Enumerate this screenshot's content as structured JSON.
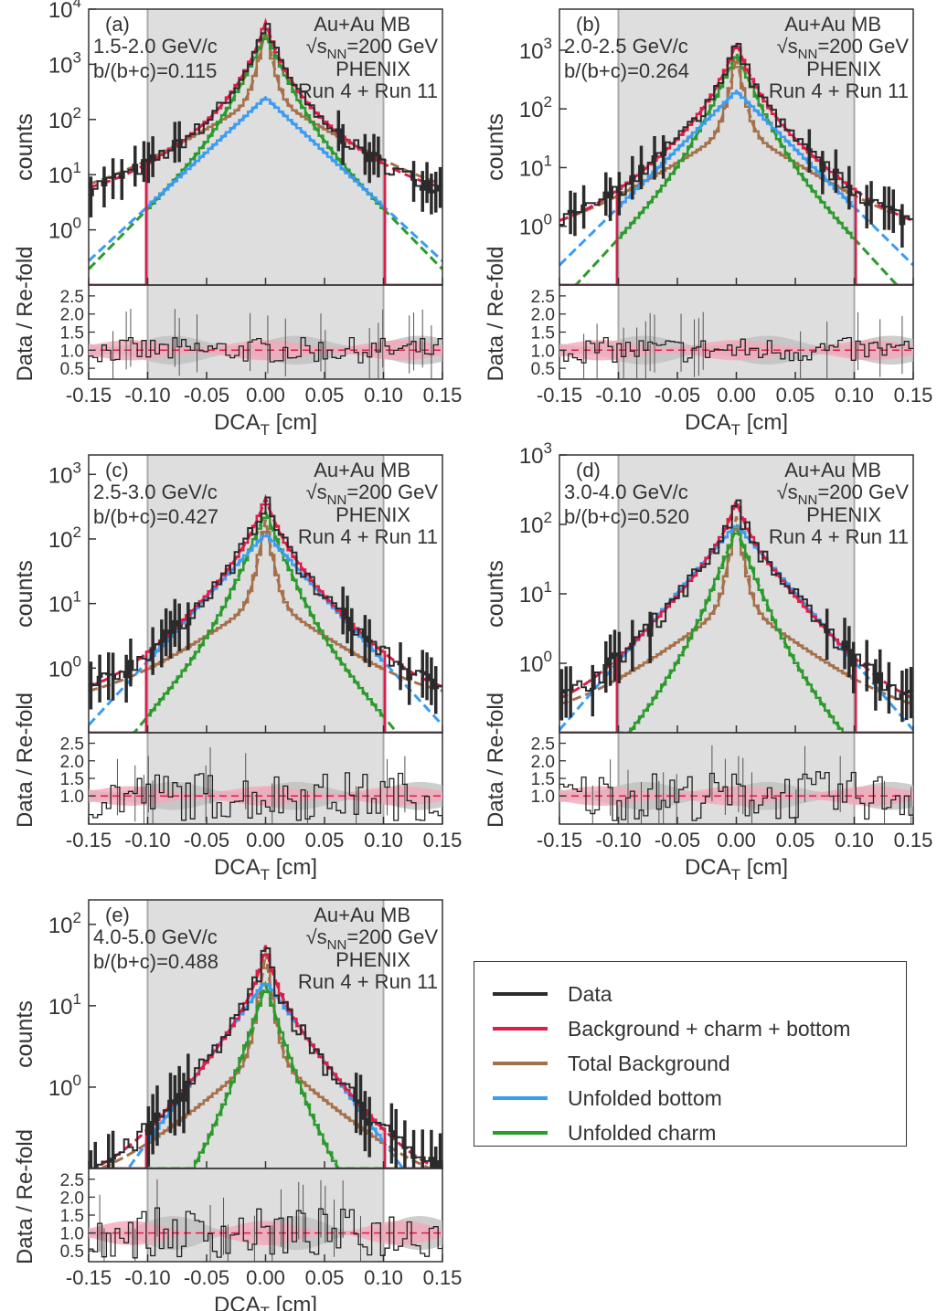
{
  "colors": {
    "data": "#2b2b2b",
    "total": "#dc1e48",
    "background": "#a5714b",
    "bottom": "#3a9cf2",
    "charm": "#2c9a2c",
    "band_gray": "#bdbdbd",
    "band_pink": "#f4a7b9",
    "shade": "#dedede"
  },
  "axis_labels": {
    "ylabel_top": "counts",
    "ylabel_ratio": "Data / Re-fold",
    "xlabel": "DCA_T [cm]",
    "xlabel_main": "DCA",
    "xlabel_sub": "T",
    "xlabel_unit": " [cm]"
  },
  "annotation": {
    "system": "Au+Au MB",
    "energy": "√sNN = 200 GeV",
    "energy_main": "√s",
    "energy_sub": "NN",
    "energy_rest": "=200 GeV",
    "experiment": "PHENIX",
    "runs": "Run 4 + Run 11"
  },
  "legend": [
    {
      "label": "Data",
      "color": "#2b2b2b"
    },
    {
      "label": "Background + charm + bottom",
      "color": "#dc1e48"
    },
    {
      "label": "Total Background",
      "color": "#a5714b"
    },
    {
      "label": "Unfolded bottom",
      "color": "#3a9cf2"
    },
    {
      "label": "Unfolded charm",
      "color": "#2c9a2c"
    }
  ],
  "chart_data": [
    {
      "type": "line",
      "panel": "(a)",
      "pt": "1.5-2.0 GeV/c",
      "bfrac": "b/(b+c)=0.115",
      "xlim": [
        -0.15,
        0.15
      ],
      "ylim_log": [
        0.1,
        10000
      ],
      "ratio_ylim": [
        0.2,
        2.8
      ],
      "yticks": [
        "10^0",
        "10^1",
        "10^2",
        "10^3",
        "10^4"
      ],
      "xticks": [
        "-0.15",
        "-0.10",
        "-0.05",
        "0.00",
        "0.05",
        "0.10",
        "0.15"
      ],
      "ratio_yticks": [
        "0.5",
        "1.0",
        "1.5",
        "2.0",
        "2.5"
      ],
      "shaded_region": [
        -0.1,
        0.1
      ],
      "series_params": {
        "peak": 8000,
        "background": 4500,
        "bottom": 250,
        "charm": 3500,
        "bkg_floor": 3
      }
    },
    {
      "type": "line",
      "panel": "(b)",
      "pt": "2.0-2.5 GeV/c",
      "bfrac": "b/(b+c)=0.264",
      "xlim": [
        -0.15,
        0.15
      ],
      "ylim_log": [
        0.1,
        5000
      ],
      "ratio_ylim": [
        0.2,
        2.8
      ],
      "yticks": [
        "10^0",
        "10^1",
        "10^2",
        "10^3"
      ],
      "xticks": [
        "-0.15",
        "-0.10",
        "-0.05",
        "0.00",
        "0.05",
        "0.10",
        "0.15"
      ],
      "ratio_yticks": [
        "0.5",
        "1.0",
        "1.5",
        "2.0",
        "2.5"
      ],
      "shaded_region": [
        -0.1,
        0.1
      ],
      "series_params": {
        "peak": 1500,
        "background": 800,
        "bottom": 200,
        "charm": 900,
        "bkg_floor": 0.6
      }
    },
    {
      "type": "line",
      "panel": "(c)",
      "pt": "2.5-3.0 GeV/c",
      "bfrac": "b/(b+c)=0.427",
      "xlim": [
        -0.15,
        0.15
      ],
      "ylim_log": [
        0.1,
        2000
      ],
      "ratio_ylim": [
        0.2,
        2.8
      ],
      "yticks": [
        "10^0",
        "10^1",
        "10^2",
        "10^3"
      ],
      "xticks": [
        "-0.15",
        "-0.10",
        "-0.05",
        "0.00",
        "0.05",
        "0.10",
        "0.15"
      ],
      "ratio_yticks": [
        "1.0",
        "1.5",
        "2.0",
        "2.5"
      ],
      "shaded_region": [
        -0.1,
        0.1
      ],
      "series_params": {
        "peak": 650,
        "background": 200,
        "bottom": 120,
        "charm": 260,
        "bkg_floor": 0.28
      }
    },
    {
      "type": "line",
      "panel": "(d)",
      "pt": "3.0-4.0 GeV/c",
      "bfrac": "b/(b+c)=0.520",
      "xlim": [
        -0.15,
        0.15
      ],
      "ylim_log": [
        0.1,
        1000
      ],
      "ratio_ylim": [
        0.2,
        2.8
      ],
      "yticks": [
        "10^0",
        "10^1",
        "10^2",
        "10^3"
      ],
      "xticks": [
        "-0.15",
        "-0.10",
        "-0.05",
        "0.00",
        "0.05",
        "0.10",
        "0.15"
      ],
      "ratio_yticks": [
        "1.0",
        "1.5",
        "2.0",
        "2.5"
      ],
      "shaded_region": [
        -0.1,
        0.1
      ],
      "series_params": {
        "peak": 250,
        "background": 130,
        "bottom": 100,
        "charm": 90,
        "bkg_floor": 0.15
      }
    },
    {
      "type": "line",
      "panel": "(e)",
      "pt": "4.0-5.0 GeV/c",
      "bfrac": "b/(b+c)=0.488",
      "xlim": [
        -0.15,
        0.15
      ],
      "ylim_log": [
        0.1,
        200
      ],
      "ratio_ylim": [
        0.2,
        2.8
      ],
      "yticks": [
        "10^0",
        "10^1",
        "10^2"
      ],
      "xticks": [
        "-0.15",
        "-0.10",
        "-0.05",
        "0.00",
        "0.05",
        "0.10",
        "0.15"
      ],
      "ratio_yticks": [
        "0.5",
        "1.0",
        "1.5",
        "2.0",
        "2.5"
      ],
      "shaded_region": [
        -0.1,
        0.1
      ],
      "series_params": {
        "peak": 70,
        "background": 45,
        "bottom": 20,
        "charm": 18,
        "bkg_floor": 0.05
      }
    }
  ]
}
